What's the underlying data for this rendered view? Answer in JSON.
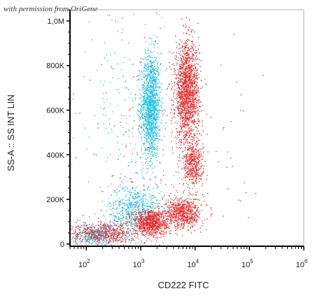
{
  "watermark": "with permission from OriGene",
  "colors": {
    "series_red": "#ee2a2a",
    "series_cyan": "#1ec3e8",
    "axis": "#000000",
    "background": "#ffffff"
  },
  "chart_data": {
    "type": "scatter",
    "xlabel": "CD222 FITC",
    "ylabel": "SS-A :: SS INT LIN",
    "xscale": "log",
    "xlim": [
      50,
      1000000
    ],
    "ylim": [
      -10000,
      1050000
    ],
    "yscale": "linear",
    "y_ticks": [
      {
        "value": 0,
        "label": "0"
      },
      {
        "value": 200000,
        "label": "200K"
      },
      {
        "value": 400000,
        "label": "400K"
      },
      {
        "value": 600000,
        "label": "600K"
      },
      {
        "value": 800000,
        "label": "800K"
      },
      {
        "value": 1000000,
        "label": "1,0M"
      }
    ],
    "x_ticks": [
      {
        "value": 100,
        "base": "10",
        "exp": "2"
      },
      {
        "value": 1000,
        "base": "10",
        "exp": "3"
      },
      {
        "value": 10000,
        "base": "10",
        "exp": "4"
      },
      {
        "value": 100000,
        "base": "10",
        "exp": "5"
      },
      {
        "value": 1000000,
        "base": "10",
        "exp": "6"
      }
    ],
    "populations": [
      {
        "color": "series_cyan",
        "x_center": 1500,
        "y_center": 620000,
        "x_spread_log": 0.09,
        "y_spread": 120000,
        "count": 1500
      },
      {
        "color": "series_cyan",
        "x_center": 800,
        "y_center": 150000,
        "x_spread_log": 0.25,
        "y_spread": 60000,
        "count": 700
      },
      {
        "color": "series_cyan",
        "x_center": 150,
        "y_center": 40000,
        "x_spread_log": 0.25,
        "y_spread": 25000,
        "count": 450
      },
      {
        "color": "series_red",
        "x_center": 7000,
        "y_center": 680000,
        "x_spread_log": 0.11,
        "y_spread": 110000,
        "count": 1700
      },
      {
        "color": "series_red",
        "x_center": 9000,
        "y_center": 360000,
        "x_spread_log": 0.09,
        "y_spread": 50000,
        "count": 450
      },
      {
        "color": "series_red",
        "x_center": 1500,
        "y_center": 100000,
        "x_spread_log": 0.16,
        "y_spread": 30000,
        "count": 900
      },
      {
        "color": "series_red",
        "x_center": 6000,
        "y_center": 140000,
        "x_spread_log": 0.16,
        "y_spread": 35000,
        "count": 700
      },
      {
        "color": "series_red",
        "x_center": 200,
        "y_center": 50000,
        "x_spread_log": 0.3,
        "y_spread": 25000,
        "count": 550
      },
      {
        "color": "series_red",
        "x_center": 3000,
        "y_center": 500000,
        "x_spread_log": 0.7,
        "y_spread": 300000,
        "count": 250
      },
      {
        "color": "series_cyan",
        "x_center": 600,
        "y_center": 600000,
        "x_spread_log": 0.45,
        "y_spread": 300000,
        "count": 220
      }
    ]
  }
}
